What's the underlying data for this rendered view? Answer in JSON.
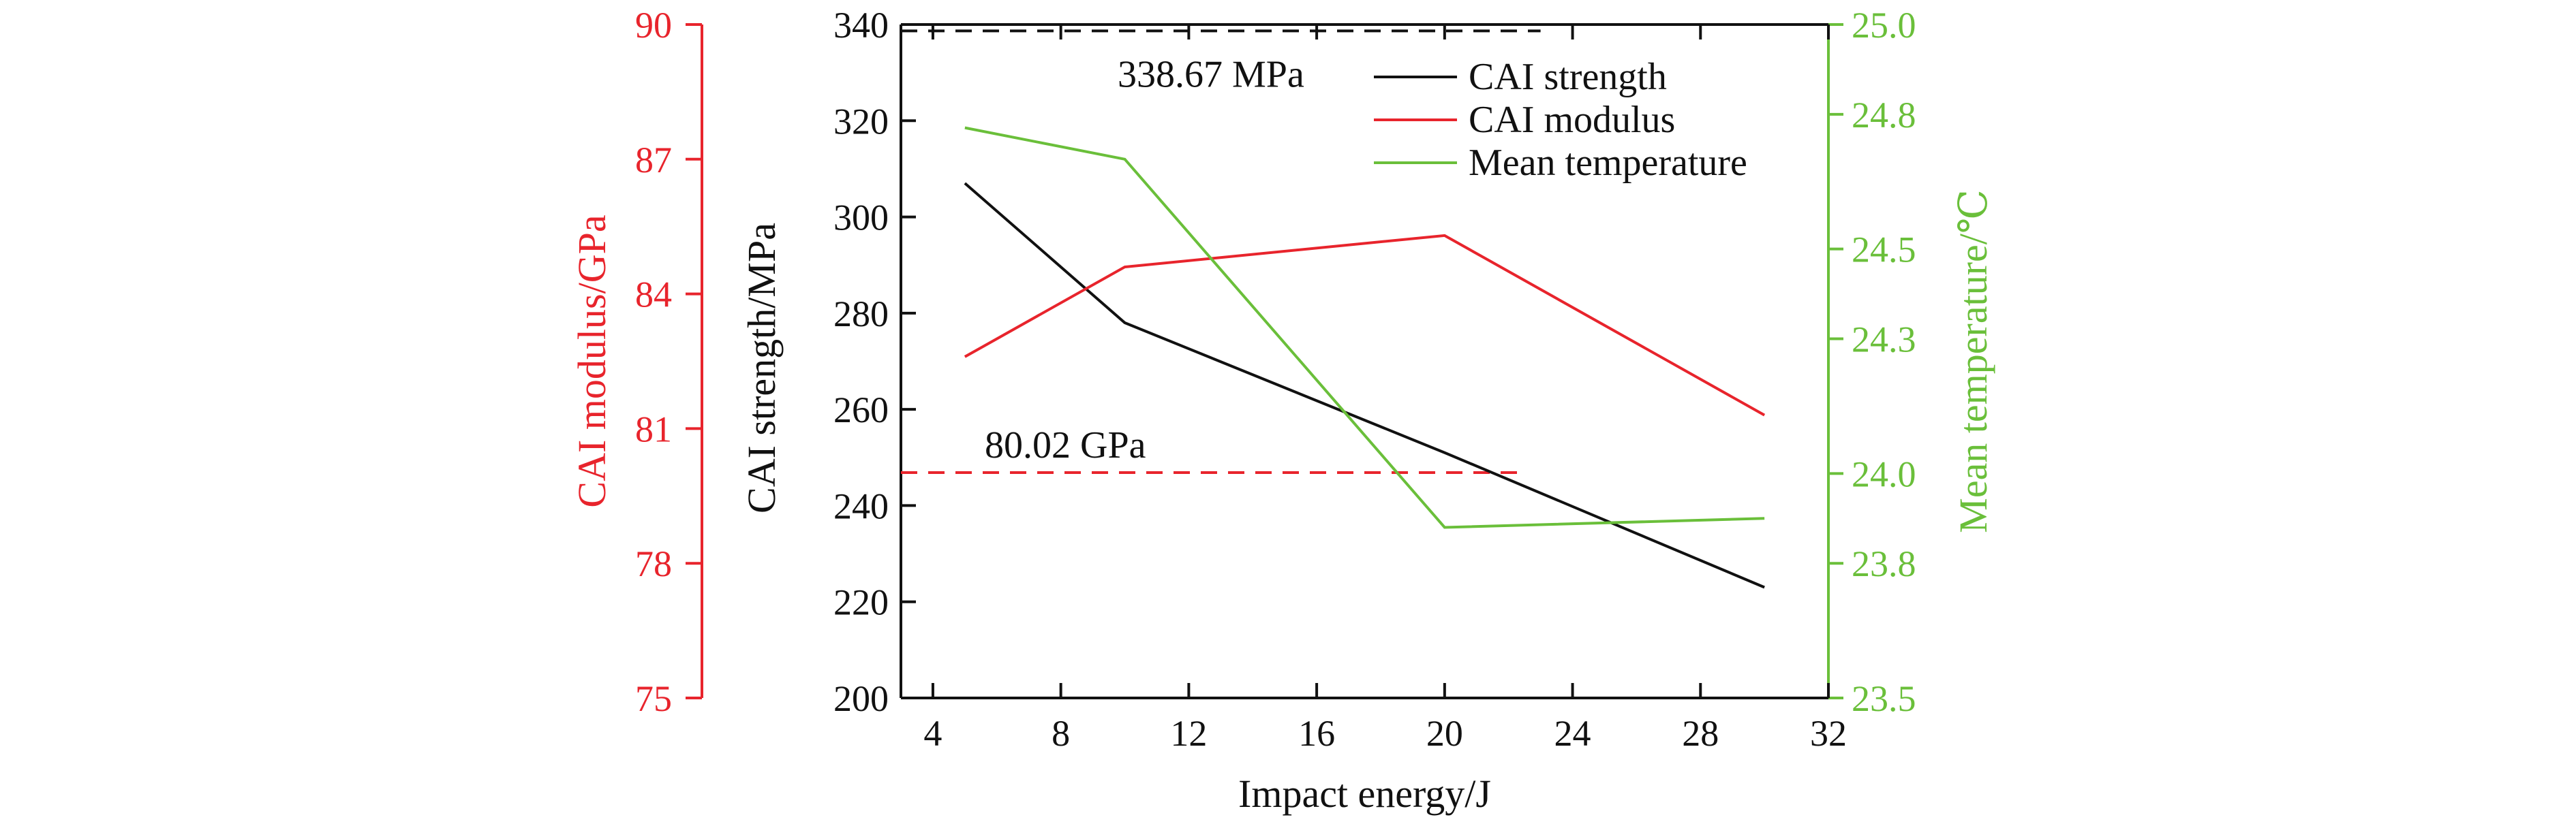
{
  "chart_data": {
    "type": "line",
    "xlabel": "Impact energy/J",
    "xlim": [
      3,
      32
    ],
    "x_ticks": [
      4,
      8,
      12,
      16,
      20,
      24,
      28,
      32
    ],
    "x": [
      5,
      10,
      20,
      30
    ],
    "axes": {
      "left_outer": {
        "label": "CAI modulus/GPa",
        "lim": [
          75,
          90
        ],
        "ticks": [
          75,
          78,
          81,
          84,
          87,
          90
        ],
        "color": "#e8242c"
      },
      "left_inner": {
        "label": "CAI strength/MPa",
        "lim": [
          200,
          340
        ],
        "ticks": [
          200,
          220,
          240,
          260,
          280,
          300,
          320,
          340
        ],
        "color": "#111111"
      },
      "right": {
        "label": "Mean temperature/℃",
        "lim": [
          23.5,
          25.0
        ],
        "ticks": [
          "23.5",
          "23.8",
          "24.0",
          "24.3",
          "24.5",
          "24.8",
          "25.0"
        ],
        "color": "#6abf3a"
      }
    },
    "series": [
      {
        "name": "CAI strength",
        "axis": "left_inner",
        "color": "#111111",
        "values": [
          307,
          278,
          251,
          223
        ]
      },
      {
        "name": "CAI modulus",
        "axis": "left_outer",
        "color": "#e8242c",
        "values": [
          82.6,
          84.6,
          85.3,
          81.3
        ]
      },
      {
        "name": "Mean temperature",
        "axis": "right",
        "color": "#6abf3a",
        "values": [
          24.77,
          24.7,
          23.88,
          23.9
        ]
      }
    ],
    "reference_lines": [
      {
        "label": "338.67 MPa",
        "axis": "left_inner",
        "value": 338.67,
        "color": "#111111",
        "x_range": [
          3,
          23
        ]
      },
      {
        "label": "80.02 GPa",
        "axis": "left_outer",
        "value": 80.02,
        "color": "#e8242c",
        "x_range": [
          3,
          22.5
        ]
      }
    ],
    "legend_position": "top-right",
    "grid": false
  }
}
